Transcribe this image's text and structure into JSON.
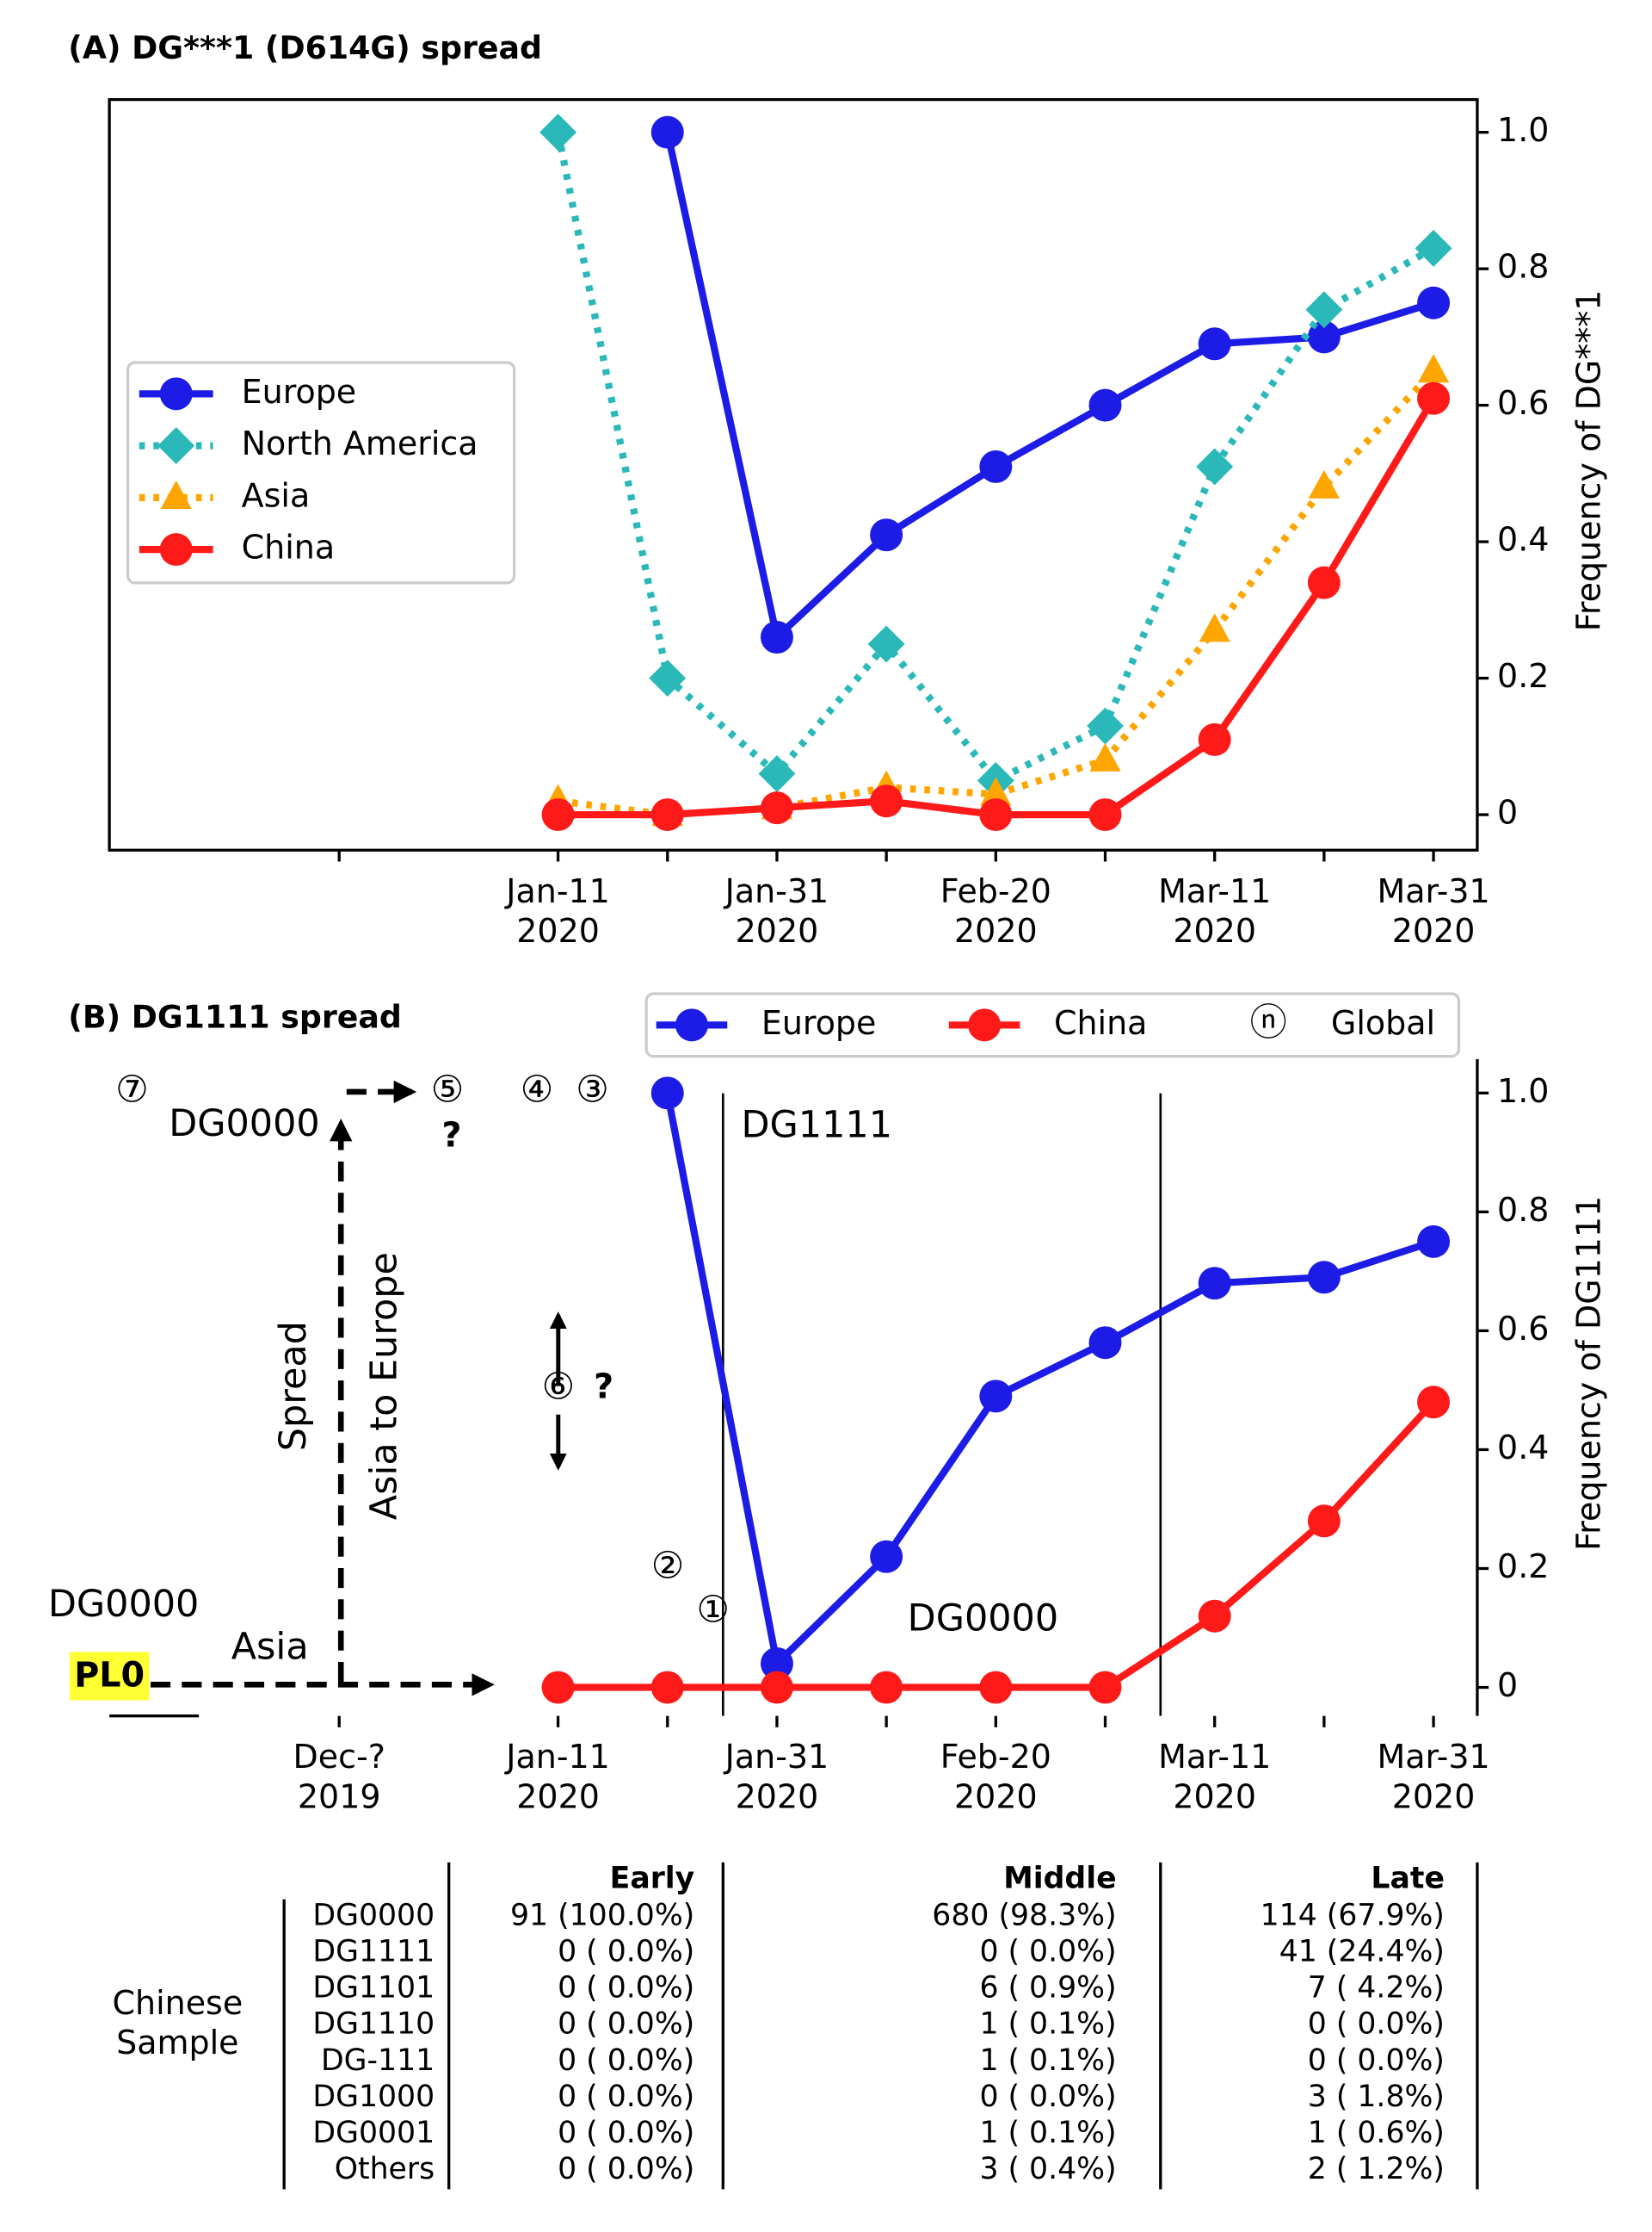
{
  "chart_data": [
    {
      "type": "line",
      "title": "(A) DG***1 (D614G) spread",
      "y_label": "Frequency of DG***1",
      "categories": [
        "Jan-11\n2020",
        null,
        "Jan-31\n2020",
        null,
        "Feb-20\n2020",
        null,
        "Mar-11\n2020",
        null,
        "Mar-31\n2020"
      ],
      "xlim": [
        -4.1,
        8.4
      ],
      "xticks": [
        {
          "value": -2,
          "label": null
        }
      ],
      "ylim": [
        -0.052,
        1.048
      ],
      "yticks": [
        0,
        0.2,
        0.4,
        0.6,
        0.8,
        {
          "value": 1,
          "label": "1.0"
        }
      ],
      "legend": "center left",
      "series": [
        {
          "name": "Europe",
          "color": "#1c1ce6",
          "marker": "o",
          "style": "solid",
          "values": [
            null,
            1.0,
            0.26,
            0.41,
            0.51,
            0.6,
            0.69,
            0.7,
            0.75
          ]
        },
        {
          "name": "North America",
          "color": "#2ab8b8",
          "marker": "D",
          "style": "dotted",
          "values": [
            1.0,
            0.2,
            0.06,
            0.25,
            0.05,
            0.13,
            0.51,
            0.74,
            0.83
          ]
        },
        {
          "name": "Asia",
          "color": "#ffa500",
          "marker": "^",
          "style": "dotted",
          "values": [
            0.02,
            0,
            0.01,
            0.04,
            0.03,
            0.08,
            0.27,
            0.48,
            0.65
          ]
        },
        {
          "name": "China",
          "color": "#ff1a1a",
          "marker": "o",
          "style": "solid",
          "values": [
            0,
            0,
            0.01,
            0.02,
            0,
            0,
            0.11,
            0.34,
            0.61
          ]
        }
      ]
    },
    {
      "type": "line",
      "title": "(B) DG1111 spread",
      "y_label": "Frequency of DG1111",
      "categories": [
        "Jan-11\n2020",
        null,
        "Jan-31\n2020",
        null,
        "Feb-20\n2020",
        null,
        "Mar-11\n2020",
        null,
        "Mar-31\n2020"
      ],
      "xlim": [
        -4.1,
        8.4
      ],
      "xticks": [
        {
          "value": -2,
          "label": "Dec-?\n2019"
        }
      ],
      "ylim": [
        -0.048,
        1.057
      ],
      "yticks": [
        0,
        0.2,
        0.4,
        0.6,
        0.8,
        {
          "value": 1,
          "label": "1.0"
        }
      ],
      "legend": "upper right outside",
      "legend_extra": {
        "symbol": "ⓝ",
        "label": "Global"
      },
      "series": [
        {
          "name": "Europe",
          "color": "#1c1ce6",
          "marker": "o",
          "style": "solid",
          "values": [
            null,
            1.0,
            0.04,
            0.22,
            0.49,
            0.58,
            0.68,
            0.69,
            0.75
          ]
        },
        {
          "name": "China",
          "color": "#ff1a1a",
          "marker": "o",
          "style": "solid",
          "values": [
            0,
            0,
            0,
            0,
            0,
            0,
            0.12,
            0.28,
            0.48
          ]
        }
      ],
      "annotations": [
        {
          "text": "⑦",
          "color": "#1c1ce6"
        },
        {
          "text": "DG0000",
          "color": "#ff1a1a"
        },
        {
          "text": "⑤",
          "color": "#1c1ce6"
        },
        {
          "text": "?",
          "color": "#000000"
        },
        {
          "text": "④",
          "color": "#1c1ce6"
        },
        {
          "text": "③",
          "color": "#1c1ce6"
        },
        {
          "text": "DG1111",
          "color": "#1c1ce6"
        },
        {
          "text": "⑥",
          "color": "#1c1ce6"
        },
        {
          "text": "?",
          "color": "#000000"
        },
        {
          "text": "Spread",
          "color": "#000000"
        },
        {
          "text": "Asia to Europe",
          "color": "#000000"
        },
        {
          "text": "②",
          "color": "#1c1ce6"
        },
        {
          "text": "①",
          "color": "#1c1ce6"
        },
        {
          "text": "DG0000",
          "color": "#ff1a1a"
        },
        {
          "text": "DG0000",
          "color": "#ff1a1a"
        },
        {
          "text": "PL0",
          "color": "#000000"
        },
        {
          "text": "Asia",
          "color": "#000000"
        }
      ]
    }
  ],
  "table": {
    "group_label": "Chinese\nSample",
    "headers": [
      "Early",
      "Middle",
      "Late"
    ],
    "row_labels": [
      "DG0000",
      "DG1111",
      "DG1101",
      "DG1110",
      "DG-111",
      "DG1000",
      "DG0001",
      "Others"
    ],
    "rows": [
      [
        "91 (100.0%)",
        "680 (98.3%)",
        "114 (67.9%)"
      ],
      [
        "0 ( 0.0%)",
        "0 ( 0.0%)",
        "41 (24.4%)"
      ],
      [
        "0 ( 0.0%)",
        "6 ( 0.9%)",
        "7 ( 4.2%)"
      ],
      [
        "0 ( 0.0%)",
        "1 ( 0.1%)",
        "0 ( 0.0%)"
      ],
      [
        "0 ( 0.0%)",
        "1 ( 0.1%)",
        "0 ( 0.0%)"
      ],
      [
        "0 ( 0.0%)",
        "0 ( 0.0%)",
        "3 ( 1.8%)"
      ],
      [
        "0 ( 0.0%)",
        "1 ( 0.1%)",
        "1 ( 0.6%)"
      ],
      [
        "0 ( 0.0%)",
        "3 ( 0.4%)",
        "2 ( 1.2%)"
      ]
    ]
  }
}
